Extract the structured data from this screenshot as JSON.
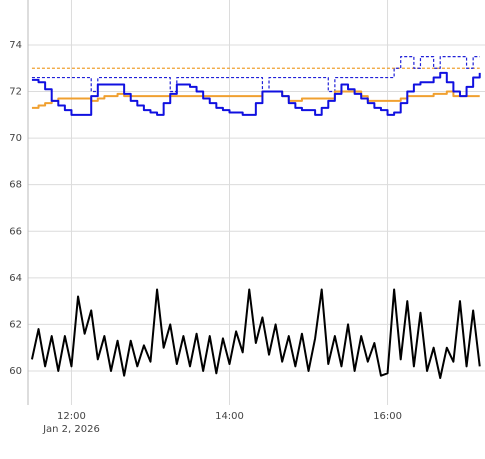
{
  "chart_data": {
    "type": "line",
    "x": [
      "2026-01-02 11:30",
      "2026-01-02 11:35",
      "2026-01-02 11:40",
      "2026-01-02 11:45",
      "2026-01-02 11:50",
      "2026-01-02 11:55",
      "2026-01-02 12:00",
      "2026-01-02 12:05",
      "2026-01-02 12:10",
      "2026-01-02 12:15",
      "2026-01-02 12:20",
      "2026-01-02 12:25",
      "2026-01-02 12:30",
      "2026-01-02 12:35",
      "2026-01-02 12:40",
      "2026-01-02 12:45",
      "2026-01-02 12:50",
      "2026-01-02 12:55",
      "2026-01-02 13:00",
      "2026-01-02 13:05",
      "2026-01-02 13:10",
      "2026-01-02 13:15",
      "2026-01-02 13:20",
      "2026-01-02 13:25",
      "2026-01-02 13:30",
      "2026-01-02 13:35",
      "2026-01-02 13:40",
      "2026-01-02 13:45",
      "2026-01-02 13:50",
      "2026-01-02 13:55",
      "2026-01-02 14:00",
      "2026-01-02 14:05",
      "2026-01-02 14:10",
      "2026-01-02 14:15",
      "2026-01-02 14:20",
      "2026-01-02 14:25",
      "2026-01-02 14:30",
      "2026-01-02 14:35",
      "2026-01-02 14:40",
      "2026-01-02 14:45",
      "2026-01-02 14:50",
      "2026-01-02 14:55",
      "2026-01-02 15:00",
      "2026-01-02 15:05",
      "2026-01-02 15:10",
      "2026-01-02 15:15",
      "2026-01-02 15:20",
      "2026-01-02 15:25",
      "2026-01-02 15:30",
      "2026-01-02 15:35",
      "2026-01-02 15:40",
      "2026-01-02 15:45",
      "2026-01-02 15:50",
      "2026-01-02 15:55",
      "2026-01-02 16:00",
      "2026-01-02 16:05",
      "2026-01-02 16:10",
      "2026-01-02 16:15",
      "2026-01-02 16:20",
      "2026-01-02 16:25",
      "2026-01-02 16:30",
      "2026-01-02 16:35",
      "2026-01-02 16:40",
      "2026-01-02 16:45",
      "2026-01-02 16:50",
      "2026-01-02 16:55",
      "2026-01-02 17:00",
      "2026-01-02 17:05",
      "2026-01-02 17:10"
    ],
    "series": [
      {
        "color": "#f0a030",
        "dash": "dot",
        "shape": "linear",
        "values": [
          73,
          73,
          73,
          73,
          73,
          73,
          73,
          73,
          73,
          73,
          73,
          73,
          73,
          73,
          73,
          73,
          73,
          73,
          73,
          73,
          73,
          73,
          73,
          73,
          73,
          73,
          73,
          73,
          73,
          73,
          73,
          73,
          73,
          73,
          73,
          73,
          73,
          73,
          73,
          73,
          73,
          73,
          73,
          73,
          73,
          73,
          73,
          73,
          73,
          73,
          73,
          73,
          73,
          73,
          73,
          73,
          73,
          73,
          73,
          73,
          73,
          73,
          73,
          73,
          73,
          73,
          73,
          73,
          73
        ]
      },
      {
        "color": "#2020d8",
        "dash": "dot",
        "shape": "hv",
        "values": [
          72.6,
          72.6,
          72.6,
          72.6,
          72.6,
          72.6,
          72.6,
          72.6,
          72.6,
          72.0,
          72.6,
          72.6,
          72.6,
          72.6,
          72.6,
          72.6,
          72.6,
          72.6,
          72.6,
          72.6,
          72.6,
          72.0,
          72.6,
          72.6,
          72.6,
          72.6,
          72.6,
          72.6,
          72.6,
          72.6,
          72.6,
          72.6,
          72.6,
          72.6,
          72.6,
          72.0,
          72.6,
          72.6,
          72.6,
          72.6,
          72.6,
          72.6,
          72.6,
          72.6,
          72.6,
          72.0,
          72.6,
          72.6,
          72.6,
          72.6,
          72.6,
          72.6,
          72.6,
          72.6,
          72.6,
          73.0,
          73.5,
          73.5,
          73.0,
          73.5,
          73.5,
          73.0,
          73.5,
          73.5,
          73.5,
          73.5,
          73.0,
          73.5,
          73.5
        ]
      },
      {
        "color": "#f0a030",
        "dash": "solid",
        "shape": "hv",
        "values": [
          71.3,
          71.4,
          71.5,
          71.6,
          71.7,
          71.7,
          71.7,
          71.7,
          71.7,
          71.6,
          71.7,
          71.8,
          71.8,
          71.9,
          71.8,
          71.8,
          71.8,
          71.8,
          71.8,
          71.8,
          71.8,
          71.8,
          71.8,
          71.8,
          71.8,
          71.8,
          71.8,
          71.8,
          71.8,
          71.8,
          71.8,
          71.8,
          71.8,
          71.8,
          71.8,
          72.0,
          72.0,
          72.0,
          71.8,
          71.6,
          71.6,
          71.7,
          71.7,
          71.7,
          71.7,
          71.7,
          72.0,
          72.0,
          72.0,
          72.0,
          71.8,
          71.6,
          71.6,
          71.6,
          71.6,
          71.6,
          71.7,
          71.8,
          71.8,
          71.8,
          71.8,
          71.9,
          71.9,
          72.0,
          71.8,
          71.8,
          71.8,
          71.8,
          71.8
        ]
      },
      {
        "color": "#1010e0",
        "dash": "solid",
        "shape": "hv",
        "values": [
          72.5,
          72.4,
          72.1,
          71.6,
          71.4,
          71.2,
          71.0,
          71.0,
          71.0,
          71.8,
          72.3,
          72.3,
          72.3,
          72.3,
          71.9,
          71.6,
          71.4,
          71.2,
          71.1,
          71.0,
          71.5,
          71.9,
          72.3,
          72.3,
          72.2,
          72.0,
          71.7,
          71.5,
          71.3,
          71.2,
          71.1,
          71.1,
          71.0,
          71.0,
          71.5,
          72.0,
          72.0,
          72.0,
          71.8,
          71.5,
          71.3,
          71.2,
          71.2,
          71.0,
          71.3,
          71.6,
          71.9,
          72.3,
          72.1,
          71.9,
          71.7,
          71.5,
          71.3,
          71.2,
          71.0,
          71.1,
          71.5,
          72.0,
          72.3,
          72.4,
          72.4,
          72.6,
          72.8,
          72.4,
          72.0,
          71.8,
          72.2,
          72.6,
          72.8
        ]
      },
      {
        "color": "#000000",
        "dash": "solid",
        "shape": "linear",
        "values": [
          60.5,
          61.8,
          60.2,
          61.5,
          60.0,
          61.5,
          60.2,
          63.2,
          61.6,
          62.6,
          60.5,
          61.5,
          60.0,
          61.3,
          59.8,
          61.3,
          60.2,
          61.1,
          60.4,
          63.5,
          61.0,
          62.0,
          60.3,
          61.5,
          60.2,
          61.6,
          60.0,
          61.5,
          59.9,
          61.4,
          60.3,
          61.7,
          60.8,
          63.5,
          61.2,
          62.3,
          60.7,
          62.0,
          60.4,
          61.5,
          60.2,
          61.6,
          60.0,
          61.4,
          63.5,
          60.3,
          61.5,
          60.2,
          62.0,
          60.0,
          61.5,
          60.4,
          61.2,
          59.8,
          59.9,
          63.5,
          60.5,
          63.0,
          60.2,
          62.5,
          60.0,
          61.0,
          59.7,
          61.0,
          60.4,
          63.0,
          60.2,
          62.6,
          60.2
        ]
      }
    ],
    "xlim": [
      "2026-01-02 11:27",
      "2026-01-02 17:14"
    ],
    "xticks": [
      {
        "value": "2026-01-02 12:00",
        "label": "12:00"
      },
      {
        "value": "2026-01-02 14:00",
        "label": "14:00"
      },
      {
        "value": "2026-01-02 16:00",
        "label": "16:00"
      }
    ],
    "x_date_label": "Jan 2, 2026",
    "ylim": [
      58.54,
      75.93
    ],
    "yticks": [
      60,
      62,
      64,
      66,
      68,
      70,
      72,
      74
    ],
    "grid": true
  }
}
